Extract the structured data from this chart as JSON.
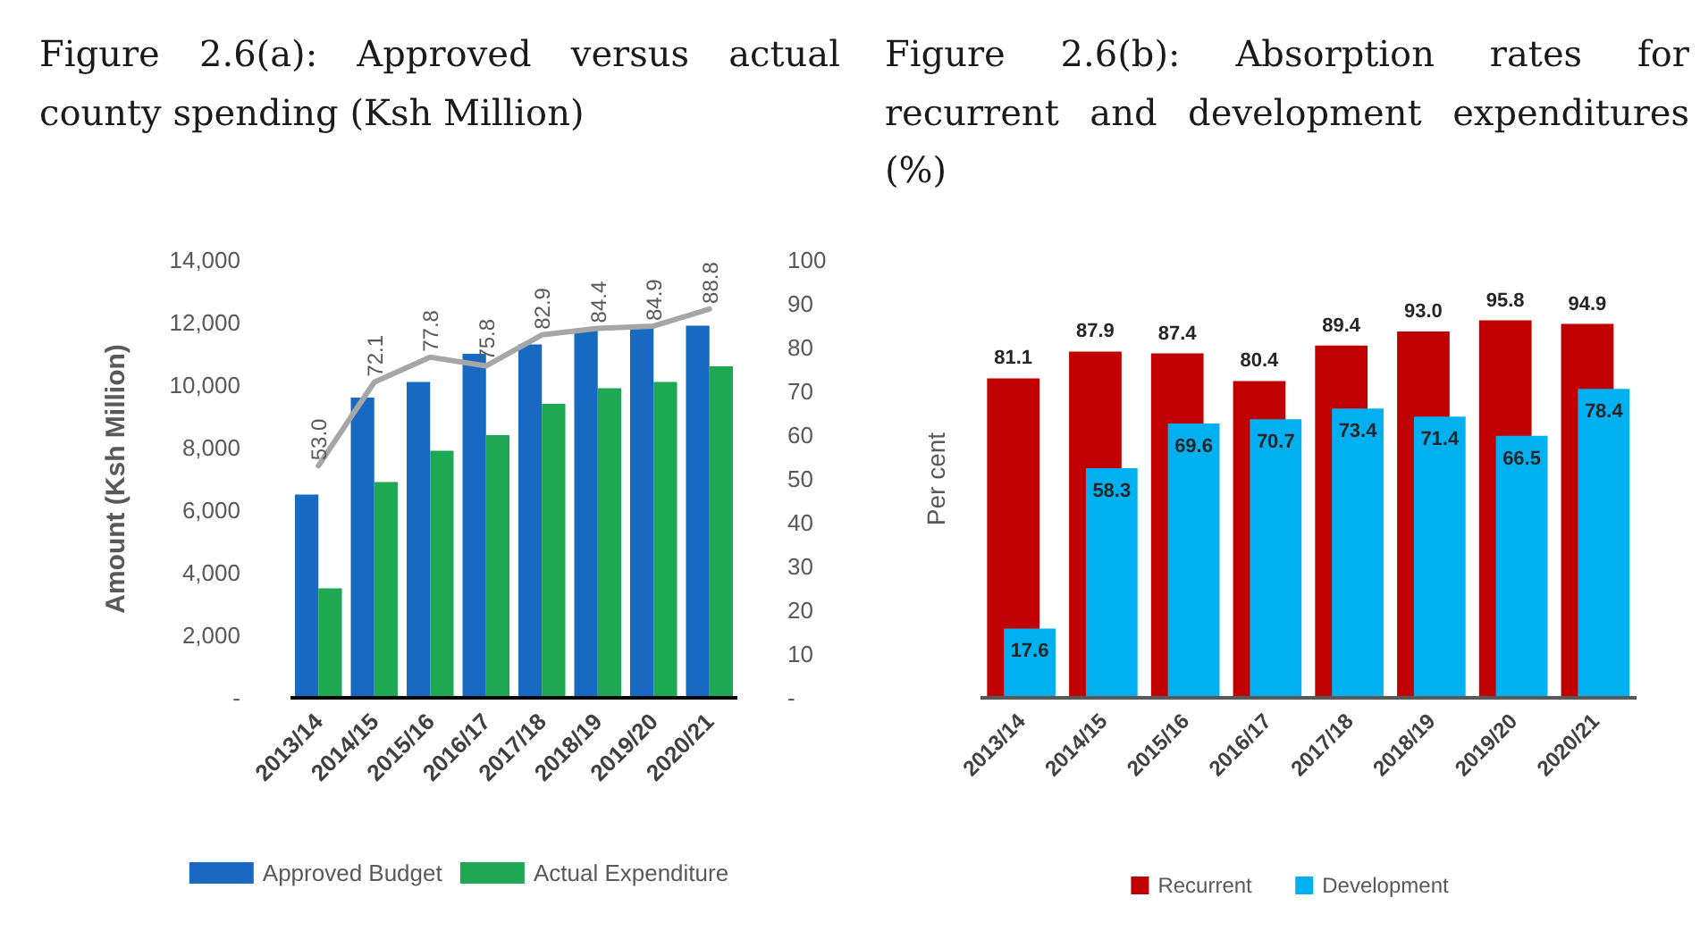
{
  "chart_data": [
    {
      "type": "bar",
      "title": "Figure 2.6(a): Approved versus actual county spending (Ksh Million)",
      "ylabel": "Amount (Ksh Million)",
      "categories": [
        "2013/14",
        "2014/15",
        "2015/16",
        "2016/17",
        "2017/18",
        "2018/19",
        "2019/20",
        "2020/21"
      ],
      "series": [
        {
          "name": "Approved Budget",
          "color": "#1769c2",
          "values": [
            6500,
            9600,
            10100,
            11000,
            11300,
            11800,
            11850,
            11900
          ]
        },
        {
          "name": "Actual Expenditure",
          "color": "#1fa852",
          "values": [
            3500,
            6900,
            7900,
            8400,
            9400,
            9900,
            10100,
            10600
          ]
        },
        {
          "type": "line",
          "axis": "y2",
          "color": "#a6a6a6",
          "values": [
            53.0,
            72.1,
            77.8,
            75.8,
            82.9,
            84.4,
            84.9,
            88.8
          ],
          "value_labels": [
            "53.0",
            "72.1",
            "77.8",
            "75.8",
            "82.9",
            "84.4",
            "84.9",
            "88.8"
          ]
        }
      ],
      "ylim": [
        0,
        14000
      ],
      "yticks": [
        {
          "value": 0,
          "label": "-"
        },
        {
          "value": 2000,
          "label": "2,000"
        },
        {
          "value": 4000,
          "label": "4,000"
        },
        {
          "value": 6000,
          "label": "6,000"
        },
        {
          "value": 8000,
          "label": "8,000"
        },
        {
          "value": 10000,
          "label": "10,000"
        },
        {
          "value": 12000,
          "label": "12,000"
        },
        {
          "value": 14000,
          "label": "14,000"
        }
      ],
      "y2lim": [
        0,
        100
      ],
      "y2ticks": [
        {
          "value": 0,
          "label": "-"
        },
        10,
        20,
        30,
        40,
        50,
        60,
        70,
        80,
        90,
        100
      ],
      "legend": "bottom"
    },
    {
      "type": "bar",
      "title": "Figure 2.6(b): Absorption rates for recurrent and development expenditures (%)",
      "ylabel": "Per cent",
      "categories": [
        "2013/14",
        "2014/15",
        "2015/16",
        "2016/17",
        "2017/18",
        "2018/19",
        "2019/20",
        "2020/21"
      ],
      "series": [
        {
          "name": "Recurrent",
          "color": "#c00000",
          "values": [
            81.1,
            87.9,
            87.4,
            80.4,
            89.4,
            93.0,
            95.8,
            94.9
          ],
          "value_labels": [
            "81.1",
            "87.9",
            "87.4",
            "80.4",
            "89.4",
            "93.0",
            "95.8",
            "94.9"
          ]
        },
        {
          "name": "Development",
          "color": "#00b0f0",
          "values": [
            17.6,
            58.3,
            69.6,
            70.7,
            73.4,
            71.4,
            66.5,
            78.4
          ],
          "value_labels": [
            "17.6",
            "58.3",
            "69.6",
            "70.7",
            "73.4",
            "71.4",
            "66.5",
            "78.4"
          ]
        }
      ],
      "legend": "bottom",
      "tick_labels": "x"
    }
  ]
}
